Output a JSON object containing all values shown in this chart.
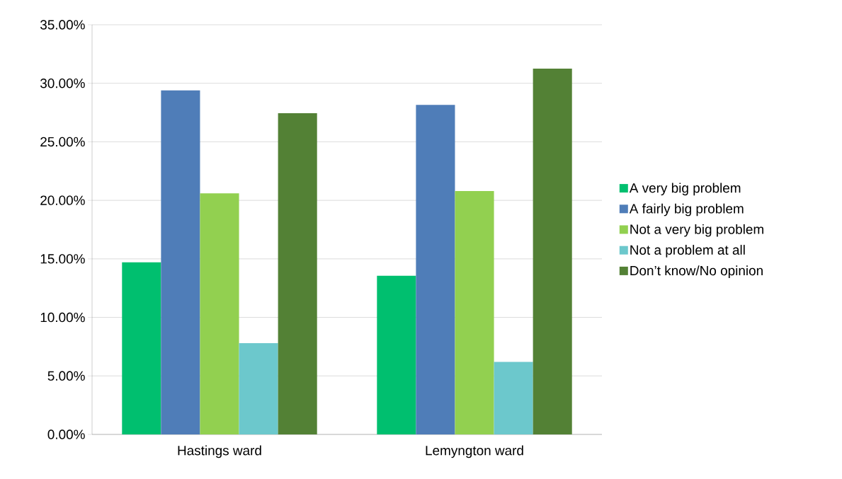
{
  "chart_data": {
    "type": "bar",
    "categories": [
      "Hastings ward",
      "Lemyngton ward"
    ],
    "series": [
      {
        "name": "A very big problem",
        "color": "#00bf6f",
        "values": [
          14.7,
          13.55
        ]
      },
      {
        "name": "A fairly big problem",
        "color": "#4f7db8",
        "values": [
          29.4,
          28.15
        ]
      },
      {
        "name": "Not a very big problem",
        "color": "#92d050",
        "values": [
          20.6,
          20.8
        ]
      },
      {
        "name": "Not a problem at all",
        "color": "#6cc8cc",
        "values": [
          7.8,
          6.2
        ]
      },
      {
        "name": "Don’t know/No opinion",
        "color": "#538135",
        "values": [
          27.45,
          31.25
        ]
      }
    ],
    "ylim": [
      0,
      35
    ],
    "yticks": [
      {
        "value": 0,
        "label": "0.00%"
      },
      {
        "value": 5,
        "label": "5.00%"
      },
      {
        "value": 10,
        "label": "10.00%"
      },
      {
        "value": 15,
        "label": "15.00%"
      },
      {
        "value": 20,
        "label": "20.00%"
      },
      {
        "value": 25,
        "label": "25.00%"
      },
      {
        "value": 30,
        "label": "30.00%"
      },
      {
        "value": 35,
        "label": "35.00%"
      }
    ],
    "grid": "y",
    "legend": "right"
  }
}
